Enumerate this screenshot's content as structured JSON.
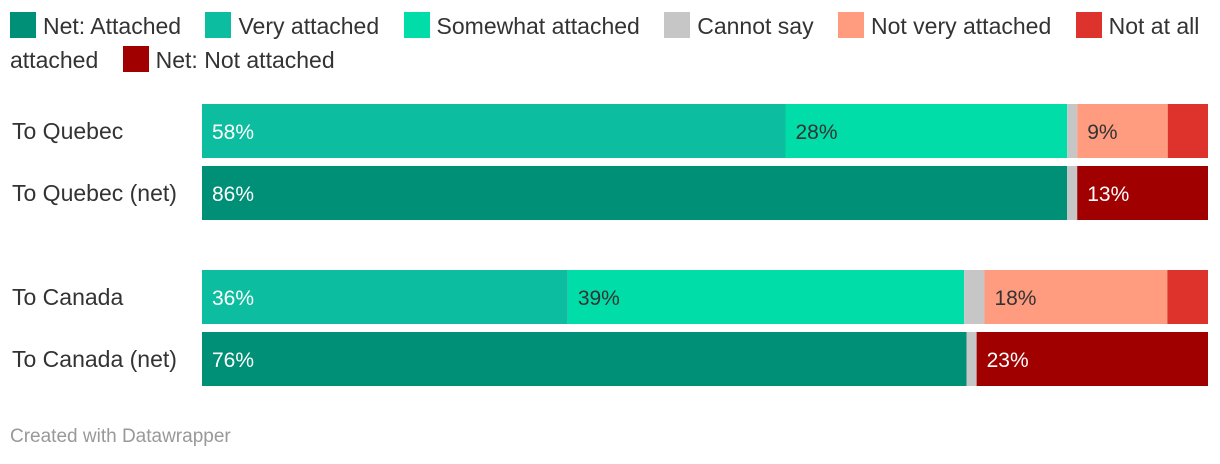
{
  "legend": [
    {
      "label": "Net: Attached",
      "color": "#008F77"
    },
    {
      "label": "Very attached",
      "color": "#0CBE9F"
    },
    {
      "label": "Somewhat attached",
      "color": "#00DDA8"
    },
    {
      "label": "Cannot say",
      "color": "#C6C6C6"
    },
    {
      "label": "Not very attached",
      "color": "#FF9B7F"
    },
    {
      "label": "Not at all attached",
      "color": "#DD332C"
    },
    {
      "label": "Net: Not attached",
      "color": "#A10000"
    }
  ],
  "chart_data": {
    "type": "bar",
    "orientation": "horizontal",
    "stacked": true,
    "xlim": [
      0,
      100
    ],
    "unit": "%",
    "rows": [
      {
        "label": "To Quebec",
        "group": 1,
        "segments": [
          {
            "series": "Very attached",
            "value": 58,
            "label": "58%"
          },
          {
            "series": "Somewhat attached",
            "value": 28,
            "label": "28%"
          },
          {
            "series": "Cannot say",
            "value": 1,
            "label": ""
          },
          {
            "series": "Not very attached",
            "value": 9,
            "label": "9%"
          },
          {
            "series": "Not at all attached",
            "value": 4,
            "label": ""
          }
        ]
      },
      {
        "label": "To Quebec (net)",
        "group": 1,
        "segments": [
          {
            "series": "Net: Attached",
            "value": 86,
            "label": "86%"
          },
          {
            "series": "Cannot say",
            "value": 1,
            "label": ""
          },
          {
            "series": "Net: Not attached",
            "value": 13,
            "label": "13%"
          }
        ]
      },
      {
        "label": "To Canada",
        "group": 2,
        "segments": [
          {
            "series": "Very attached",
            "value": 36,
            "label": "36%"
          },
          {
            "series": "Somewhat attached",
            "value": 39,
            "label": "39%"
          },
          {
            "series": "Cannot say",
            "value": 2,
            "label": ""
          },
          {
            "series": "Not very attached",
            "value": 18,
            "label": "18%"
          },
          {
            "series": "Not at all attached",
            "value": 4,
            "label": ""
          }
        ]
      },
      {
        "label": "To Canada (net)",
        "group": 2,
        "segments": [
          {
            "series": "Net: Attached",
            "value": 76,
            "label": "76%"
          },
          {
            "series": "Cannot say",
            "value": 1,
            "label": ""
          },
          {
            "series": "Net: Not attached",
            "value": 23,
            "label": "23%"
          }
        ]
      }
    ],
    "segment_text_colors": {
      "Net: Attached": "#ffffff",
      "Very attached": "#ffffff",
      "Somewhat attached": "#333333",
      "Not very attached": "#333333",
      "Net: Not attached": "#ffffff"
    }
  },
  "footer": "Created with Datawrapper"
}
